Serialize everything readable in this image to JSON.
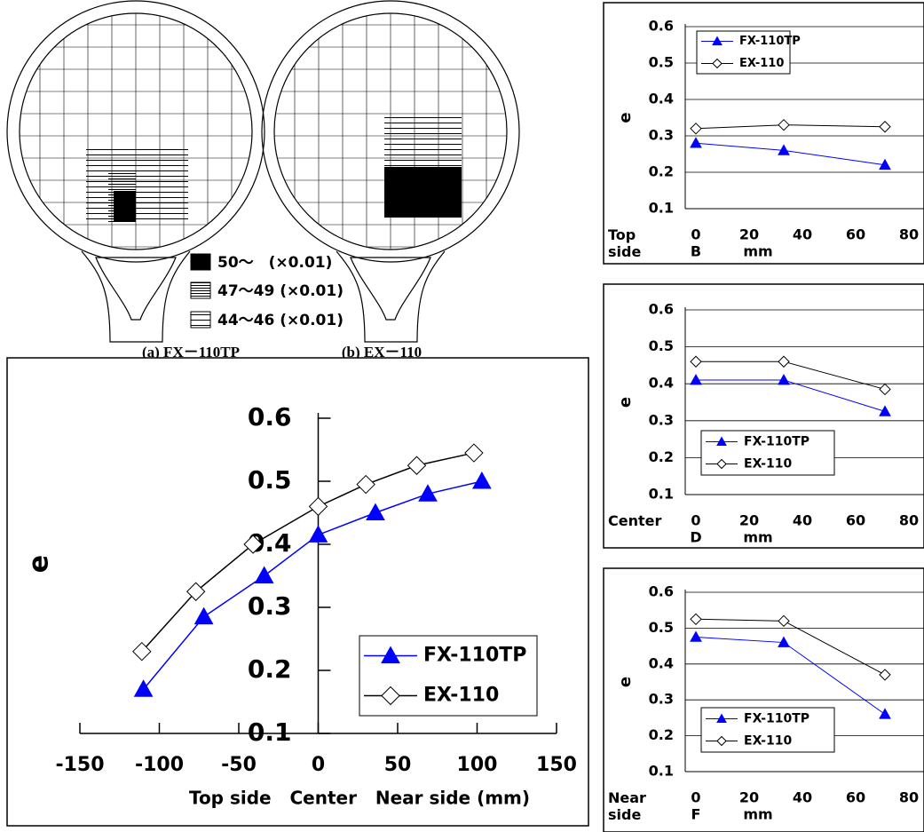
{
  "diagram": {
    "legend": [
      "50～　(×0.01)",
      "47～49 (×0.01)",
      "44～46 (×0.01)"
    ],
    "captions": [
      "(a) FX－110TP",
      "(b) EX－110"
    ]
  },
  "chart_data": [
    {
      "type": "line",
      "x_label": "Top side   Center   Near side (mm)",
      "y_label": "e",
      "xlim": [
        -150,
        150
      ],
      "xticks": [
        -150,
        -100,
        -50,
        0,
        50,
        100,
        150
      ],
      "ylim": [
        0.1,
        0.6
      ],
      "yticks": [
        0.1,
        0.2,
        0.3,
        0.4,
        0.5,
        0.6
      ],
      "grid": false,
      "legend": "lower right",
      "series": [
        {
          "name": "FX-110TP",
          "color": "#0000ff",
          "marker": "triangle",
          "x": [
            -110,
            -72,
            -34,
            0,
            36,
            69,
            103
          ],
          "values": [
            0.17,
            0.285,
            0.35,
            0.415,
            0.45,
            0.48,
            0.5
          ]
        },
        {
          "name": "EX-110",
          "color": "#000000",
          "marker": "diamond",
          "x": [
            -111,
            -77,
            -41,
            0,
            30,
            62,
            98
          ],
          "values": [
            0.23,
            0.325,
            0.4,
            0.46,
            0.495,
            0.525,
            0.545
          ]
        }
      ]
    },
    {
      "type": "line",
      "y_label": "e",
      "row_label": "Top side",
      "point_label": "B",
      "unit": "mm",
      "xlim": [
        0,
        80
      ],
      "xticks": [
        0,
        20,
        40,
        60,
        80
      ],
      "ylim": [
        0.1,
        0.6
      ],
      "yticks": [
        0.1,
        0.2,
        0.3,
        0.4,
        0.5,
        0.6
      ],
      "grid": true,
      "legend": "upper left",
      "series": [
        {
          "name": "FX-110TP",
          "color": "#0000ff",
          "marker": "triangle",
          "x": [
            0,
            33,
            71
          ],
          "values": [
            0.28,
            0.26,
            0.22
          ]
        },
        {
          "name": "EX-110",
          "color": "#000000",
          "marker": "diamond",
          "x": [
            0,
            33,
            71
          ],
          "values": [
            0.32,
            0.33,
            0.325
          ]
        }
      ]
    },
    {
      "type": "line",
      "y_label": "e",
      "row_label": "Center",
      "point_label": "D",
      "unit": "mm",
      "xlim": [
        0,
        80
      ],
      "xticks": [
        0,
        20,
        40,
        60,
        80
      ],
      "ylim": [
        0.1,
        0.6
      ],
      "yticks": [
        0.1,
        0.2,
        0.3,
        0.4,
        0.5,
        0.6
      ],
      "grid": true,
      "legend": "lower left",
      "series": [
        {
          "name": "FX-110TP",
          "color": "#0000ff",
          "marker": "triangle",
          "x": [
            0,
            33,
            71
          ],
          "values": [
            0.41,
            0.41,
            0.325
          ]
        },
        {
          "name": "EX-110",
          "color": "#000000",
          "marker": "diamond",
          "x": [
            0,
            33,
            71
          ],
          "values": [
            0.46,
            0.46,
            0.385
          ]
        }
      ]
    },
    {
      "type": "line",
      "y_label": "e",
      "row_label": "Near side",
      "point_label": "F",
      "unit": "mm",
      "xlim": [
        0,
        80
      ],
      "xticks": [
        0,
        20,
        40,
        60,
        80
      ],
      "ylim": [
        0.1,
        0.6
      ],
      "yticks": [
        0.1,
        0.2,
        0.3,
        0.4,
        0.5,
        0.6
      ],
      "grid": true,
      "legend": "lower left",
      "series": [
        {
          "name": "FX-110TP",
          "color": "#0000ff",
          "marker": "triangle",
          "x": [
            0,
            33,
            71
          ],
          "values": [
            0.475,
            0.46,
            0.26
          ]
        },
        {
          "name": "EX-110",
          "color": "#000000",
          "marker": "diamond",
          "x": [
            0,
            33,
            71
          ],
          "values": [
            0.525,
            0.52,
            0.37
          ]
        }
      ]
    }
  ]
}
